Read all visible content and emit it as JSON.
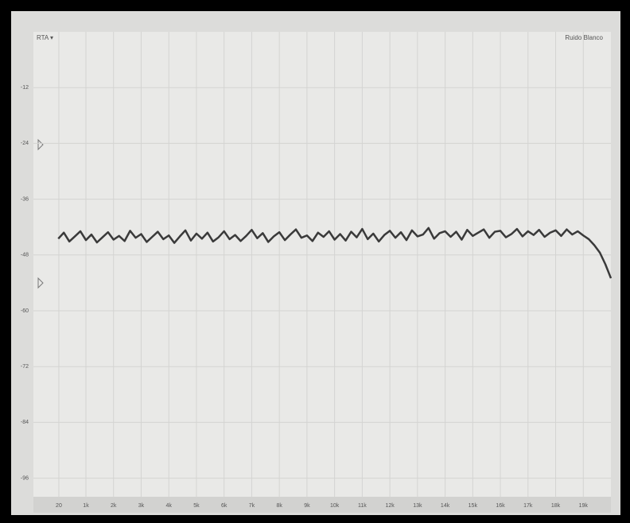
{
  "chart_data": {
    "type": "line",
    "title": "RTA ▾",
    "x": [
      0,
      200,
      400,
      600,
      800,
      1000,
      1200,
      1400,
      1600,
      1800,
      2000,
      2200,
      2400,
      2600,
      2800,
      3000,
      3200,
      3400,
      3600,
      3800,
      4000,
      4200,
      4400,
      4600,
      4800,
      5000,
      5200,
      5400,
      5600,
      5800,
      6000,
      6200,
      6400,
      6600,
      6800,
      7000,
      7200,
      7400,
      7600,
      7800,
      8000,
      8200,
      8400,
      8600,
      8800,
      9000,
      9200,
      9400,
      9600,
      9800,
      10000,
      10200,
      10400,
      10600,
      10800,
      11000,
      11200,
      11400,
      11600,
      11800,
      12000,
      12200,
      12400,
      12600,
      12800,
      13000,
      13200,
      13400,
      13600,
      13800,
      14000,
      14200,
      14400,
      14600,
      14800,
      15000,
      15200,
      15400,
      15600,
      15800,
      16000,
      16200,
      16400,
      16600,
      16800,
      17000,
      17200,
      17400,
      17600,
      17800,
      18000,
      18200,
      18400,
      18600,
      18800,
      19000,
      19200,
      19400,
      19600,
      19800,
      20000
    ],
    "series": [
      {
        "name": "Ruido Blanco",
        "color": "#3a3a3a",
        "values": [
          -44.5,
          -43.2,
          -45.1,
          -44.0,
          -42.9,
          -44.8,
          -43.6,
          -45.3,
          -44.2,
          -43.1,
          -44.7,
          -43.9,
          -45.0,
          -42.8,
          -44.3,
          -43.5,
          -45.2,
          -44.1,
          -43.0,
          -44.6,
          -43.8,
          -45.4,
          -44.0,
          -42.7,
          -44.9,
          -43.4,
          -44.5,
          -43.2,
          -45.1,
          -44.2,
          -42.9,
          -44.6,
          -43.7,
          -45.0,
          -43.9,
          -42.6,
          -44.4,
          -43.3,
          -45.2,
          -44.0,
          -43.1,
          -44.8,
          -43.6,
          -42.5,
          -44.3,
          -43.8,
          -45.0,
          -43.2,
          -44.1,
          -42.9,
          -44.7,
          -43.5,
          -44.9,
          -43.0,
          -44.2,
          -42.4,
          -44.6,
          -43.4,
          -45.1,
          -43.7,
          -42.8,
          -44.3,
          -43.1,
          -44.8,
          -42.7,
          -44.0,
          -43.6,
          -42.2,
          -44.5,
          -43.3,
          -42.9,
          -44.1,
          -43.0,
          -44.7,
          -42.6,
          -43.9,
          -43.2,
          -42.5,
          -44.3,
          -43.0,
          -42.8,
          -44.2,
          -43.5,
          -42.4,
          -44.0,
          -42.9,
          -43.7,
          -42.6,
          -44.1,
          -43.2,
          -42.7,
          -43.9,
          -42.5,
          -43.6,
          -42.9,
          -43.8,
          -44.6,
          -45.9,
          -47.5,
          -50.0,
          -53.0
        ]
      }
    ],
    "xlim": [
      -900,
      20000
    ],
    "xticks": [
      {
        "value": 20,
        "label": "20"
      },
      {
        "value": 1000,
        "label": "1k"
      },
      {
        "value": 2000,
        "label": "2k"
      },
      {
        "value": 3000,
        "label": "3k"
      },
      {
        "value": 4000,
        "label": "4k"
      },
      {
        "value": 5000,
        "label": "5k"
      },
      {
        "value": 6000,
        "label": "6k"
      },
      {
        "value": 7000,
        "label": "7k"
      },
      {
        "value": 8000,
        "label": "8k"
      },
      {
        "value": 9000,
        "label": "9k"
      },
      {
        "value": 10000,
        "label": "10k"
      },
      {
        "value": 11000,
        "label": "11k"
      },
      {
        "value": 12000,
        "label": "12k"
      },
      {
        "value": 13000,
        "label": "13k"
      },
      {
        "value": 14000,
        "label": "14k"
      },
      {
        "value": 15000,
        "label": "15k"
      },
      {
        "value": 16000,
        "label": "16k"
      },
      {
        "value": 17000,
        "label": "17k"
      },
      {
        "value": 18000,
        "label": "18k"
      },
      {
        "value": 19000,
        "label": "19k"
      }
    ],
    "ylim": [
      -100,
      0
    ],
    "yticks": [
      -12,
      -24,
      -36,
      -48,
      -60,
      -72,
      -84,
      -96
    ],
    "grid": true
  }
}
